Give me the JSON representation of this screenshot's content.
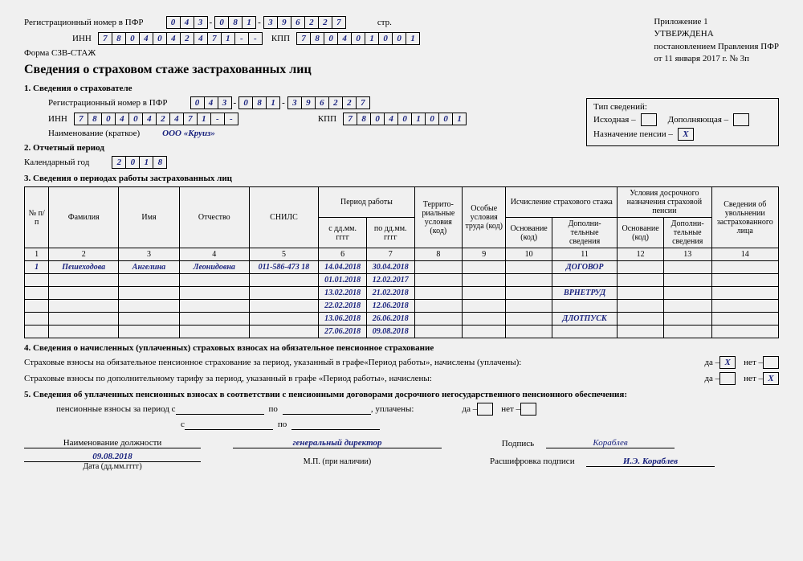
{
  "header": {
    "reg_label": "Регистрационный номер в ПФР",
    "reg1": [
      "0",
      "4",
      "3"
    ],
    "reg2": [
      "0",
      "8",
      "1"
    ],
    "reg3": [
      "3",
      "9",
      "6",
      "2",
      "2",
      "7"
    ],
    "str_label": "стр.",
    "inn_label": "ИНН",
    "inn": [
      "7",
      "8",
      "0",
      "4",
      "0",
      "4",
      "2",
      "4",
      "7",
      "1",
      "-",
      "-"
    ],
    "kpp_label": "КПП",
    "kpp": [
      "7",
      "8",
      "0",
      "4",
      "0",
      "1",
      "0",
      "0",
      "1"
    ],
    "form_label": "Форма СЗВ-СТАЖ",
    "title": "Сведения о страховом стаже застрахованных лиц",
    "appendix": "Приложение 1",
    "approved": "УТВЕРЖДЕНА",
    "resolution": "постановлением Правления ПФР",
    "date_res": "от 11 января 2017 г. № 3п"
  },
  "type_box": {
    "title": "Тип сведений:",
    "initial": "Исходная –",
    "supplementary": "Дополняющая –",
    "pension": "Назначение пенсии –",
    "pension_mark": "X"
  },
  "section1": {
    "title": "1. Сведения о страхователе",
    "reg_label": "Регистрационный номер в ПФР",
    "reg1": [
      "0",
      "4",
      "3"
    ],
    "reg2": [
      "0",
      "8",
      "1"
    ],
    "reg3": [
      "3",
      "9",
      "6",
      "2",
      "2",
      "7"
    ],
    "inn_label": "ИНН",
    "inn": [
      "7",
      "8",
      "0",
      "4",
      "0",
      "4",
      "2",
      "4",
      "7",
      "1",
      "-",
      "-"
    ],
    "kpp_label": "КПП",
    "kpp": [
      "7",
      "8",
      "0",
      "4",
      "0",
      "1",
      "0",
      "0",
      "1"
    ],
    "name_label": "Наименование (краткое)",
    "name_value": "ООО «Круиз»"
  },
  "section2": {
    "title": "2. Отчетный период",
    "year_label": "Календарный год",
    "year": [
      "2",
      "0",
      "1",
      "8"
    ]
  },
  "section3": {
    "title": "3. Сведения о периодах работы застрахованных лиц",
    "headers": {
      "num": "№ п/п",
      "surname": "Фамилия",
      "name": "Имя",
      "patronymic": "Отчество",
      "snils": "СНИЛС",
      "period": "Период работы",
      "from": "с дд.мм. гггг",
      "to": "по дд.мм. гггг",
      "territory": "Террито-риальные условия (код)",
      "special": "Особые условия труда (код)",
      "calc": "Исчисление страхового стажа",
      "basis": "Основание (код)",
      "addinfo": "Дополни-тельные сведения",
      "early": "Условия досрочного назначения страховой пенсии",
      "basis2": "Основание (код)",
      "addinfo2": "Дополни-тельные сведения",
      "dismiss": "Сведения об увольнении застрахованного лица"
    },
    "nums": [
      "1",
      "2",
      "3",
      "4",
      "5",
      "6",
      "7",
      "8",
      "9",
      "10",
      "11",
      "12",
      "13",
      "14"
    ],
    "rows": [
      {
        "n": "1",
        "f": "Пешеходова",
        "i": "Ангелина",
        "o": "Леонидовна",
        "s": "011-586-473 18",
        "d1": "14.04.2018",
        "d2": "30.04.2018",
        "ext": "ДОГОВОР"
      },
      {
        "n": "",
        "f": "",
        "i": "",
        "o": "",
        "s": "",
        "d1": "01.01.2018",
        "d2": "12.02.2017",
        "ext": ""
      },
      {
        "n": "",
        "f": "",
        "i": "",
        "o": "",
        "s": "",
        "d1": "13.02.2018",
        "d2": "21.02.2018",
        "ext": "ВРНЕТРУД"
      },
      {
        "n": "",
        "f": "",
        "i": "",
        "o": "",
        "s": "",
        "d1": "22.02.2018",
        "d2": "12.06.2018",
        "ext": ""
      },
      {
        "n": "",
        "f": "",
        "i": "",
        "o": "",
        "s": "",
        "d1": "13.06.2018",
        "d2": "26.06.2018",
        "ext": "ДЛОТПУСК"
      },
      {
        "n": "",
        "f": "",
        "i": "",
        "o": "",
        "s": "",
        "d1": "27.06.2018",
        "d2": "09.08.2018",
        "ext": ""
      }
    ]
  },
  "section4": {
    "title": "4. Сведения о начисленных (уплаченных) страховых взносах на обязательное пенсионное страхование",
    "line1": "Страховые взносы на обязательное пенсионное страхование за период, указанный в графе«Период работы», начислены (уплачены):",
    "line2": "Страховые взносы по дополнительному тарифу за период, указанный в графе «Период работы», начислены:",
    "yes": "да –",
    "no": "нет –",
    "mark1_yes": "X",
    "mark2_no": "X"
  },
  "section5": {
    "title": "5. Сведения об уплаченных пенсионных взносах в соответствии с пенсионными договорами досрочного негосударственного пенсионного обеспечения:",
    "line1": "пенсионные взносы за период с",
    "po": "по",
    "paid": ", уплачены:",
    "s": "с",
    "yes": "да –",
    "no": "нет –"
  },
  "footer": {
    "position_label": "Наименование должности",
    "position": "генеральный директор",
    "sign_label": "Подпись",
    "signature": "Кораблев",
    "decode_label": "Расшифровка подписи",
    "decode": "И.Э. Кораблев",
    "date": "09.08.2018",
    "date_label": "Дата (дд.мм.гггг)",
    "stamp": "М.П. (при наличии)"
  }
}
